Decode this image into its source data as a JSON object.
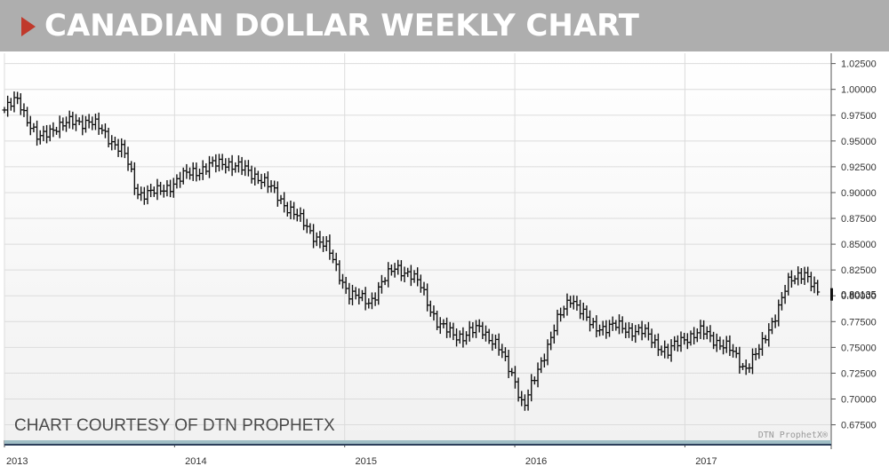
{
  "header": {
    "title": "CANADIAN DOLLAR WEEKLY CHART",
    "marker_color": "#c0392b"
  },
  "credit": "CHART COURTESY OF DTN PROPHETX",
  "watermark": "DTN ProphetX®",
  "chart_data": {
    "type": "line",
    "style": "weekly OHLC price bars",
    "ylim": [
      0.66,
      1.035
    ],
    "yticks": [
      "1.02500",
      "1.00000",
      "0.97500",
      "0.95000",
      "0.92500",
      "0.90000",
      "0.87500",
      "0.85000",
      "0.82500",
      "0.80000",
      "0.77500",
      "0.75000",
      "0.72500",
      "0.70000",
      "0.67500"
    ],
    "x_labels": [
      "2013",
      "2014",
      "2015",
      "2016",
      "2017"
    ],
    "last_price": "0.80135",
    "last_value": 0.80135,
    "grid": true,
    "anchors": [
      [
        2013.0,
        0.98
      ],
      [
        2013.08,
        0.99
      ],
      [
        2013.2,
        0.95
      ],
      [
        2013.3,
        0.965
      ],
      [
        2013.5,
        0.97
      ],
      [
        2013.7,
        0.94
      ],
      [
        2013.78,
        0.9
      ],
      [
        2013.9,
        0.9
      ],
      [
        2014.1,
        0.92
      ],
      [
        2014.3,
        0.93
      ],
      [
        2014.5,
        0.915
      ],
      [
        2014.7,
        0.88
      ],
      [
        2014.9,
        0.845
      ],
      [
        2015.03,
        0.8
      ],
      [
        2015.15,
        0.795
      ],
      [
        2015.3,
        0.83
      ],
      [
        2015.45,
        0.81
      ],
      [
        2015.55,
        0.77
      ],
      [
        2015.7,
        0.76
      ],
      [
        2015.8,
        0.77
      ],
      [
        2015.9,
        0.75
      ],
      [
        2016.0,
        0.72
      ],
      [
        2016.05,
        0.69
      ],
      [
        2016.15,
        0.735
      ],
      [
        2016.25,
        0.775
      ],
      [
        2016.33,
        0.8
      ],
      [
        2016.45,
        0.77
      ],
      [
        2016.6,
        0.77
      ],
      [
        2016.75,
        0.765
      ],
      [
        2016.9,
        0.745
      ],
      [
        2017.0,
        0.76
      ],
      [
        2017.1,
        0.765
      ],
      [
        2017.25,
        0.75
      ],
      [
        2017.35,
        0.73
      ],
      [
        2017.45,
        0.75
      ],
      [
        2017.6,
        0.81
      ],
      [
        2017.7,
        0.825
      ],
      [
        2017.78,
        0.801
      ]
    ]
  }
}
